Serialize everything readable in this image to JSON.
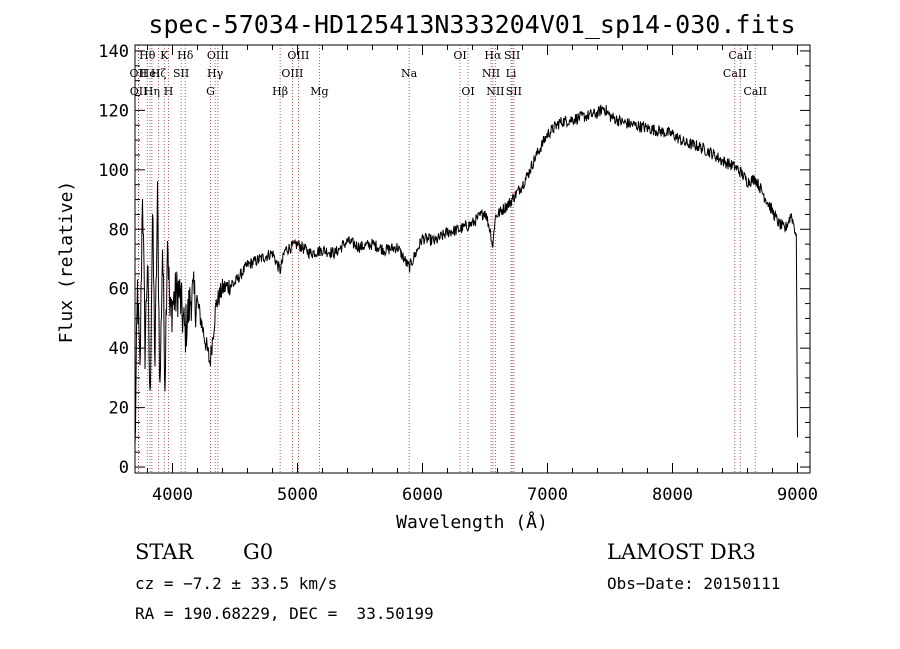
{
  "chart_data": {
    "type": "line",
    "title": "spec-57034-HD125413N333204V01_sp14-030.fits",
    "xlabel": "Wavelength (Å)",
    "ylabel": "Flux (relative)",
    "xlim": [
      3700,
      9100
    ],
    "ylim": [
      -2,
      142
    ],
    "x_ticks": [
      4000,
      5000,
      6000,
      7000,
      8000,
      9000
    ],
    "y_ticks": [
      0,
      20,
      40,
      60,
      80,
      100,
      120,
      140
    ],
    "grid": false,
    "series": [
      {
        "x": [
          3700,
          3720,
          3740,
          3760,
          3780,
          3800,
          3820,
          3840,
          3860,
          3880,
          3900,
          3920,
          3940,
          3960,
          3980,
          4000,
          4050,
          4100,
          4150,
          4200,
          4250,
          4300,
          4350,
          4400,
          4500,
          4600,
          4700,
          4800,
          4861,
          4900,
          5000,
          5100,
          5200,
          5300,
          5400,
          5500,
          5600,
          5700,
          5800,
          5893,
          6000,
          6100,
          6200,
          6300,
          6400,
          6500,
          6540,
          6563,
          6580,
          6600,
          6650,
          6700,
          6750,
          6800,
          6850,
          6900,
          7000,
          7050,
          7100,
          7200,
          7300,
          7400,
          7450,
          7500,
          7600,
          7700,
          7800,
          7900,
          8000,
          8100,
          8200,
          8300,
          8400,
          8500,
          8550,
          8600,
          8662,
          8700,
          8750,
          8800,
          8850,
          8900,
          8950,
          8990,
          9000
        ],
        "y": [
          5,
          60,
          30,
          95,
          40,
          70,
          20,
          85,
          35,
          90,
          25,
          75,
          30,
          80,
          50,
          55,
          60,
          45,
          58,
          55,
          45,
          35,
          55,
          60,
          62,
          68,
          70,
          72,
          66,
          73,
          75,
          72,
          73,
          72,
          76,
          74,
          75,
          73,
          74,
          67,
          77,
          76,
          79,
          80,
          82,
          86,
          80,
          74,
          84,
          85,
          87,
          89,
          92,
          95,
          99,
          104,
          112,
          114,
          116,
          117,
          118,
          119,
          121,
          118,
          116,
          115,
          114,
          113,
          112,
          109,
          108,
          106,
          103,
          101,
          99,
          96,
          97,
          94,
          90,
          86,
          82,
          80,
          85,
          78,
          10
        ]
      }
    ],
    "spectral_lines": [
      {
        "label": "OII",
        "x": 3727,
        "row": 1
      },
      {
        "label": "OII",
        "x": 3729,
        "row": 2
      },
      {
        "label": "Hθ",
        "x": 3798,
        "row": 0
      },
      {
        "label": "HeI",
        "x": 3820,
        "row": 1
      },
      {
        "label": "Hη",
        "x": 3835,
        "row": 2
      },
      {
        "label": "Hζ",
        "x": 3889,
        "row": 1
      },
      {
        "label": "K",
        "x": 3934,
        "row": 0
      },
      {
        "label": "H",
        "x": 3968,
        "row": 2
      },
      {
        "label": "SII",
        "x": 4069,
        "row": 1
      },
      {
        "label": "Hδ",
        "x": 4102,
        "row": 0
      },
      {
        "label": "G",
        "x": 4304,
        "row": 2
      },
      {
        "label": "Hγ",
        "x": 4341,
        "row": 1
      },
      {
        "label": "OIII",
        "x": 4363,
        "row": 0
      },
      {
        "label": "Hβ",
        "x": 4861,
        "row": 2
      },
      {
        "label": "OIII",
        "x": 4959,
        "row": 1
      },
      {
        "label": "OIII",
        "x": 5007,
        "row": 0
      },
      {
        "label": "Mg",
        "x": 5175,
        "row": 2
      },
      {
        "label": "Na",
        "x": 5893,
        "row": 1
      },
      {
        "label": "OI",
        "x": 6300,
        "row": 0
      },
      {
        "label": "OI",
        "x": 6364,
        "row": 2
      },
      {
        "label": "NII",
        "x": 6548,
        "row": 1
      },
      {
        "label": "Hα",
        "x": 6563,
        "row": 0
      },
      {
        "label": "NII",
        "x": 6583,
        "row": 2
      },
      {
        "label": "Li",
        "x": 6708,
        "row": 1
      },
      {
        "label": "SII",
        "x": 6717,
        "row": 0
      },
      {
        "label": "SII",
        "x": 6731,
        "row": 2
      },
      {
        "label": "CaII",
        "x": 8498,
        "row": 1
      },
      {
        "label": "CaII",
        "x": 8542,
        "row": 0
      },
      {
        "label": "CaII",
        "x": 8662,
        "row": 2
      }
    ]
  },
  "info": {
    "object_type": "STAR",
    "subclass": "G0",
    "survey": "LAMOST DR3",
    "redshift": "cz = −7.2 ± 33.5 km/s",
    "obs_date": "Obs−Date: 20150111",
    "coords": "RA = 190.68229, DEC =  33.50199"
  }
}
